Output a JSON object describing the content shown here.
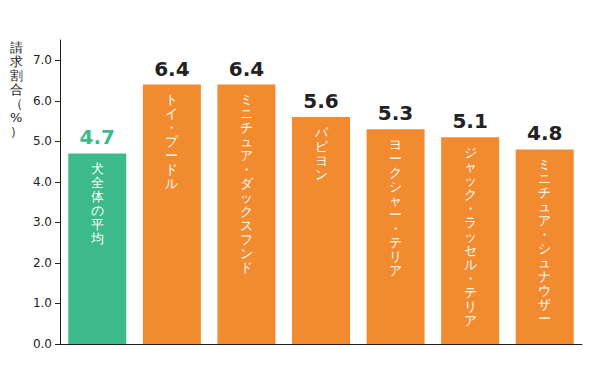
{
  "chart_data": {
    "type": "bar",
    "y_label": "請求割合（%）",
    "categories": [
      "犬全体の平均",
      "トイ・プードル",
      "ミニチュア・ダックスフンド",
      "パピヨン",
      "ヨークシャー・テリア",
      "ジャック・ラッセル・テリア",
      "ミニチュア・シュナウザー"
    ],
    "values": [
      4.7,
      6.4,
      6.4,
      5.6,
      5.3,
      5.1,
      4.8
    ],
    "colors": [
      "#3dba8c",
      "#f28a30",
      "#f28a30",
      "#f28a30",
      "#f28a30",
      "#f28a30",
      "#f28a30"
    ],
    "ylim": [
      0,
      7.5
    ],
    "yticks": [
      {
        "value": 0,
        "label": "0.0"
      },
      {
        "value": 1,
        "label": "1.0"
      },
      {
        "value": 2,
        "label": "2.0"
      },
      {
        "value": 3,
        "label": "3.0"
      },
      {
        "value": 4,
        "label": "4.0"
      },
      {
        "value": 5,
        "label": "5.0"
      },
      {
        "value": 6,
        "label": "6.0"
      },
      {
        "value": 7,
        "label": "7.0"
      }
    ],
    "grid": false,
    "data_labels": true
  }
}
